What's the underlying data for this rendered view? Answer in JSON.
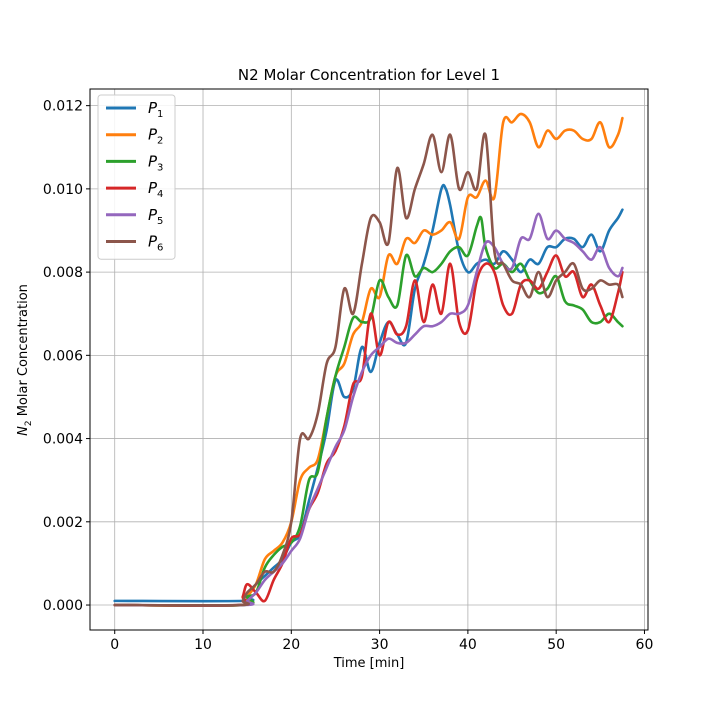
{
  "chart_data": {
    "type": "line",
    "title": "N2 Molar Concentration for Level 1",
    "xlabel": "Time [min]",
    "ylabel_main": "N",
    "ylabel_sub": "2",
    "ylabel_rest": " Molar Concentration",
    "xlim": [
      -2.8,
      60.4
    ],
    "ylim": [
      -0.0006,
      0.0124
    ],
    "xticks": [
      0,
      10,
      20,
      30,
      40,
      50,
      60
    ],
    "xtick_labels": [
      "0",
      "10",
      "20",
      "30",
      "40",
      "50",
      "60"
    ],
    "yticks": [
      0,
      0.002,
      0.004,
      0.006,
      0.008,
      0.01,
      0.012
    ],
    "ytick_labels": [
      "0.000",
      "0.002",
      "0.004",
      "0.006",
      "0.008",
      "0.010",
      "0.012"
    ],
    "grid": true,
    "legend_position": "top-left",
    "series": [
      {
        "name": "P",
        "sub": "1",
        "color": "#1f77b4",
        "x": [
          0,
          14.5,
          15,
          16,
          17,
          18,
          19,
          20,
          21,
          22,
          23,
          24,
          25,
          26,
          27,
          28,
          29,
          30,
          31,
          32,
          33,
          34,
          35,
          36,
          37,
          37.5,
          38,
          39,
          40,
          41,
          42,
          43,
          44,
          45,
          46,
          47,
          48,
          49,
          50,
          51,
          52,
          53,
          54,
          55,
          56,
          57,
          57.5
        ],
        "y": [
          0.0001,
          0.0001,
          0.0002,
          0.0005,
          0.0007,
          0.0009,
          0.0011,
          0.0015,
          0.0017,
          0.0025,
          0.0033,
          0.0042,
          0.0054,
          0.005,
          0.0052,
          0.0062,
          0.0056,
          0.0063,
          0.0068,
          0.0065,
          0.0063,
          0.0076,
          0.0082,
          0.009,
          0.01,
          0.01,
          0.0096,
          0.0085,
          0.008,
          0.0082,
          0.0083,
          0.0082,
          0.0085,
          0.0083,
          0.008,
          0.0083,
          0.0082,
          0.0086,
          0.0086,
          0.0088,
          0.0088,
          0.0086,
          0.0089,
          0.0085,
          0.009,
          0.0093,
          0.0095
        ]
      },
      {
        "name": "P",
        "sub": "2",
        "color": "#ff7f0e",
        "x": [
          0,
          14.5,
          15,
          16,
          17,
          18,
          19,
          20,
          21,
          22,
          23,
          24,
          25,
          26,
          27,
          28,
          29,
          30,
          31,
          32,
          33,
          34,
          35,
          36,
          37,
          38,
          39,
          40,
          41,
          42,
          43,
          44,
          45,
          46,
          47,
          48,
          49,
          50,
          51,
          52,
          53,
          54,
          55,
          56,
          57,
          57.5
        ],
        "y": [
          0.0,
          0.0,
          0.0002,
          0.0005,
          0.0011,
          0.0013,
          0.0015,
          0.002,
          0.003,
          0.0033,
          0.0035,
          0.0045,
          0.0055,
          0.0058,
          0.0065,
          0.0068,
          0.0076,
          0.0074,
          0.0084,
          0.0082,
          0.0088,
          0.0087,
          0.009,
          0.0089,
          0.009,
          0.0092,
          0.0088,
          0.0098,
          0.0098,
          0.0102,
          0.0098,
          0.0116,
          0.0116,
          0.0118,
          0.0116,
          0.011,
          0.0114,
          0.0112,
          0.0114,
          0.0114,
          0.0112,
          0.0112,
          0.0116,
          0.011,
          0.0113,
          0.0117
        ]
      },
      {
        "name": "P",
        "sub": "3",
        "color": "#2ca02c",
        "x": [
          0,
          14.5,
          15,
          16,
          17,
          18,
          19,
          20,
          21,
          22,
          23,
          24,
          25,
          26,
          27,
          28,
          29,
          30,
          31,
          32,
          33,
          34,
          35,
          36,
          37,
          38,
          39,
          40,
          41,
          41.5,
          42,
          43,
          44,
          45,
          46,
          47,
          48,
          49,
          50,
          51,
          52,
          53,
          54,
          55,
          56,
          57,
          57.5
        ],
        "y": [
          0.0,
          0.0,
          0.0002,
          0.0003,
          0.0009,
          0.0012,
          0.0014,
          0.0015,
          0.0019,
          0.003,
          0.0032,
          0.0045,
          0.0055,
          0.0062,
          0.0069,
          0.0068,
          0.0069,
          0.0078,
          0.0074,
          0.0072,
          0.0084,
          0.0079,
          0.0081,
          0.008,
          0.0082,
          0.0085,
          0.0086,
          0.0084,
          0.0091,
          0.0093,
          0.0086,
          0.0081,
          0.0082,
          0.008,
          0.0082,
          0.0078,
          0.0075,
          0.0076,
          0.0079,
          0.0073,
          0.0072,
          0.0071,
          0.0068,
          0.0068,
          0.007,
          0.0068,
          0.0067
        ]
      },
      {
        "name": "P",
        "sub": "4",
        "color": "#d62728",
        "x": [
          0,
          14,
          14.5,
          15,
          16,
          17,
          18,
          19,
          20,
          21,
          22,
          23,
          24,
          25,
          26,
          27,
          28,
          29,
          30,
          31,
          32,
          33,
          34,
          35,
          36,
          37,
          38,
          39,
          40,
          41,
          42,
          43,
          44,
          45,
          46,
          47,
          48,
          49,
          50,
          51,
          52,
          53,
          54,
          55,
          56,
          57,
          57.5
        ],
        "y": [
          0.0,
          0.0,
          0.0002,
          0.0005,
          0.0003,
          0.0001,
          0.0006,
          0.001,
          0.0016,
          0.0017,
          0.0023,
          0.0027,
          0.0034,
          0.0037,
          0.0043,
          0.0053,
          0.0055,
          0.007,
          0.006,
          0.0068,
          0.0065,
          0.0067,
          0.0078,
          0.0068,
          0.0077,
          0.007,
          0.0082,
          0.0068,
          0.0066,
          0.0078,
          0.0082,
          0.008,
          0.0072,
          0.007,
          0.0077,
          0.0078,
          0.0076,
          0.008,
          0.0084,
          0.0079,
          0.008,
          0.0074,
          0.0077,
          0.0072,
          0.0068,
          0.0075,
          0.008
        ]
      },
      {
        "name": "P",
        "sub": "5",
        "color": "#9467bd",
        "x": [
          0,
          14.5,
          15,
          16,
          17,
          18,
          19,
          20,
          21,
          22,
          23,
          24,
          25,
          26,
          27,
          28,
          29,
          30,
          31,
          32,
          33,
          34,
          35,
          36,
          37,
          38,
          39,
          40,
          41,
          42,
          43,
          44,
          45,
          46,
          47,
          48,
          49,
          50,
          51,
          52,
          53,
          54,
          55,
          56,
          57,
          57.5
        ],
        "y": [
          0.0,
          0.0,
          0.0001,
          0.0003,
          0.0006,
          0.0008,
          0.001,
          0.0013,
          0.0016,
          0.0023,
          0.0028,
          0.0033,
          0.0038,
          0.0042,
          0.005,
          0.0056,
          0.006,
          0.0062,
          0.0064,
          0.0063,
          0.0063,
          0.0065,
          0.0067,
          0.0067,
          0.0068,
          0.007,
          0.007,
          0.0072,
          0.008,
          0.0087,
          0.0086,
          0.0082,
          0.0081,
          0.0088,
          0.0088,
          0.0094,
          0.0088,
          0.009,
          0.0088,
          0.0087,
          0.0085,
          0.0083,
          0.0086,
          0.0081,
          0.0079,
          0.0081
        ]
      },
      {
        "name": "P",
        "sub": "6",
        "color": "#8c564b",
        "x": [
          0,
          14,
          14.5,
          15,
          16,
          17,
          18,
          19,
          20,
          21,
          22,
          23,
          24,
          25,
          26,
          27,
          28,
          29,
          30,
          31,
          32,
          33,
          34,
          35,
          36,
          37,
          38,
          39,
          40,
          41,
          42,
          43,
          44,
          45,
          46,
          47,
          48,
          49,
          50,
          51,
          52,
          53,
          54,
          55,
          56,
          57,
          57.5
        ],
        "y": [
          0.0,
          0.0,
          0.0001,
          0.0003,
          0.0005,
          0.0008,
          0.0008,
          0.0012,
          0.002,
          0.004,
          0.004,
          0.0046,
          0.0058,
          0.0062,
          0.0076,
          0.007,
          0.0082,
          0.0093,
          0.0092,
          0.0087,
          0.0105,
          0.0093,
          0.01,
          0.0106,
          0.0113,
          0.0104,
          0.0113,
          0.01,
          0.0104,
          0.01,
          0.0113,
          0.0085,
          0.0082,
          0.0078,
          0.0077,
          0.0074,
          0.008,
          0.0074,
          0.0078,
          0.008,
          0.0082,
          0.0076,
          0.0076,
          0.0078,
          0.0077,
          0.0077,
          0.0074
        ]
      }
    ]
  }
}
